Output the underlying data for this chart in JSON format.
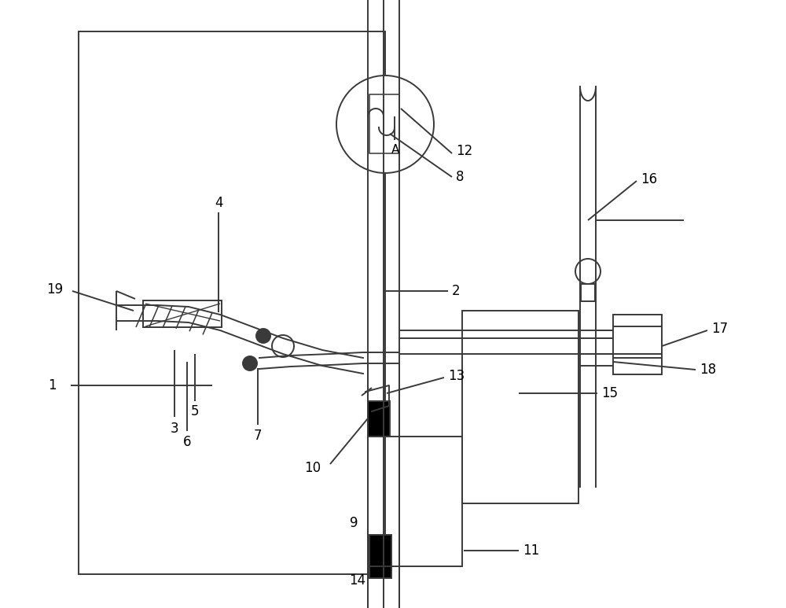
{
  "bg_color": "#ffffff",
  "line_color": "#3a3a3a",
  "lw": 1.4,
  "fig_width": 10.0,
  "fig_height": 7.73
}
